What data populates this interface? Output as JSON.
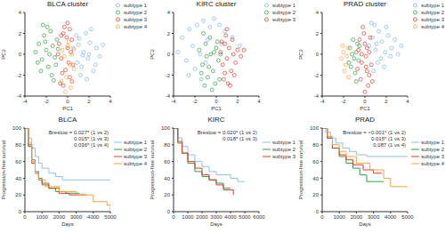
{
  "chart_data": [
    {
      "type": "scatter",
      "title": "BLCA cluster",
      "x_label": "PC1",
      "y_label": "PC2",
      "xlim": [
        -4,
        4
      ],
      "ylim": [
        -4,
        4
      ],
      "xticks": [
        -4,
        -2,
        0,
        2,
        4
      ],
      "yticks": [
        -4,
        -2,
        0,
        2,
        4
      ],
      "legend": "top-right",
      "series": [
        {
          "name": "subtype 1",
          "color": "#7fb2e5",
          "marker": "circle",
          "x": [
            0.6,
            0.9,
            1.1,
            1.3,
            1.5,
            1.7,
            1.9,
            2.1,
            2.4,
            2.7,
            3.0,
            3.3,
            1.2,
            1.8,
            2.2,
            0.8,
            1.4,
            2.6,
            1.0,
            2.0
          ],
          "values": [
            0.5,
            -0.8,
            1.5,
            -1.2,
            0.2,
            2.0,
            -0.4,
            1.1,
            -1.6,
            0.6,
            -0.2,
            0.9,
            -2.0,
            -2.4,
            2.4,
            1.8,
            -0.1,
            -1.0,
            0.9,
            0.0
          ]
        },
        {
          "name": "subtype 2",
          "color": "#2e9e44",
          "marker": "circle",
          "x": [
            -3.0,
            -2.7,
            -2.4,
            -2.2,
            -2.0,
            -1.8,
            -1.6,
            -1.4,
            -1.2,
            -1.0,
            -2.5,
            -1.9,
            -1.5,
            -1.1,
            -2.8,
            -1.7,
            -1.3,
            -2.1,
            -0.9,
            -2.3
          ],
          "values": [
            0.2,
            1.0,
            -0.5,
            1.8,
            0.4,
            -1.2,
            2.2,
            0.8,
            -0.3,
            1.4,
            -1.6,
            2.6,
            -2.0,
            -1.0,
            -0.8,
            0.0,
            -2.5,
            1.2,
            0.5,
            2.8
          ]
        },
        {
          "name": "subtype 3",
          "color": "#e03a2a",
          "marker": "circle",
          "x": [
            -0.8,
            -0.6,
            -0.4,
            -0.2,
            0.0,
            0.2,
            0.4,
            -0.7,
            -0.3,
            0.1,
            0.3,
            -0.5,
            -0.1,
            0.5,
            -0.9,
            0.0,
            -0.4,
            0.2,
            -0.6,
            0.4
          ],
          "values": [
            1.0,
            -0.4,
            2.0,
            -1.5,
            0.6,
            -2.2,
            1.4,
            -2.8,
            2.6,
            -0.8,
            0.2,
            -1.8,
            1.6,
            -1.0,
            0.0,
            3.0,
            -3.0,
            2.4,
            1.8,
            -2.6
          ]
        },
        {
          "name": "subtype 4",
          "color": "#f5a33a",
          "marker": "circle",
          "x": [
            -0.3,
            0.0,
            0.2,
            -0.5,
            0.4,
            -0.1,
            0.6,
            -0.6,
            0.1,
            0.3,
            -0.2,
            0.5
          ],
          "values": [
            -0.2,
            0.8,
            -1.0,
            0.4,
            0.0,
            -2.2,
            -1.4,
            -2.6,
            1.2,
            -3.2,
            -3.6,
            0.6
          ]
        }
      ]
    },
    {
      "type": "scatter",
      "title": "KIRC cluster",
      "x_label": "PC1",
      "y_label": "PC2",
      "xlim": [
        -4,
        4
      ],
      "ylim": [
        -4,
        4
      ],
      "xticks": [
        -4,
        -2,
        0,
        2,
        4
      ],
      "yticks": [
        -4,
        -2,
        0,
        2,
        4
      ],
      "legend": "top-right",
      "series": [
        {
          "name": "subtype 1",
          "color": "#7fb2e5",
          "marker": "circle",
          "x": [
            -3.6,
            -3.2,
            -2.8,
            -2.5,
            -2.2,
            -2.0,
            -1.8,
            -1.5,
            -1.2,
            -1.0,
            -0.6,
            -0.2,
            0.3,
            0.8,
            1.5,
            -2.6,
            -1.4,
            -0.8,
            0.5,
            2.2
          ],
          "values": [
            0.2,
            1.6,
            -0.6,
            2.4,
            0.8,
            -1.4,
            2.8,
            0.0,
            3.2,
            -0.8,
            2.6,
            3.4,
            2.8,
            2.2,
            1.6,
            -2.0,
            -2.4,
            1.4,
            1.0,
            0.8
          ]
        },
        {
          "name": "subtype 2",
          "color": "#2e9e44",
          "marker": "circle",
          "x": [
            -1.6,
            -1.3,
            -1.0,
            -0.8,
            -0.5,
            -0.3,
            0.0,
            0.2,
            -1.1,
            -0.6,
            -0.1,
            0.1,
            -0.9,
            -0.4,
            -1.4,
            -0.7,
            0.3,
            -0.2,
            -1.2,
            0.4
          ],
          "values": [
            0.4,
            -1.0,
            1.0,
            -2.2,
            0.0,
            -1.6,
            0.6,
            -0.6,
            -3.0,
            1.6,
            -2.8,
            1.2,
            -0.2,
            -3.4,
            -1.8,
            -1.2,
            -2.4,
            0.2,
            2.0,
            0.0
          ]
        },
        {
          "name": "subtype 3",
          "color": "#e03a2a",
          "marker": "circle",
          "x": [
            0.4,
            0.6,
            0.8,
            1.0,
            1.2,
            1.4,
            1.6,
            1.8,
            2.0,
            2.3,
            0.7,
            1.1,
            1.5,
            0.9,
            1.3,
            0.5,
            1.7,
            2.6,
            1.0,
            0.8
          ],
          "values": [
            0.2,
            -1.0,
            1.0,
            -0.4,
            0.6,
            -1.6,
            0.0,
            -0.8,
            0.4,
            -0.2,
            -2.4,
            -2.8,
            1.4,
            1.8,
            -3.0,
            1.2,
            -2.0,
            0.4,
            2.4,
            -1.8
          ]
        }
      ]
    },
    {
      "type": "scatter",
      "title": "PRAD cluster",
      "x_label": "PC1",
      "y_label": "PC2",
      "xlim": [
        -4,
        4
      ],
      "ylim": [
        -4,
        4
      ],
      "xticks": [
        -4,
        -2,
        0,
        2,
        4
      ],
      "yticks": [
        -4,
        -2,
        0,
        2,
        4
      ],
      "legend": "top-right",
      "series": [
        {
          "name": "subtype 1",
          "color": "#7fb2e5",
          "marker": "circle",
          "x": [
            0.4,
            0.7,
            1.0,
            1.3,
            1.6,
            1.9,
            2.2,
            2.5,
            2.8,
            3.1,
            0.9,
            1.5,
            2.0,
            1.2,
            0.6,
            1.8,
            2.4,
            1.1,
            3.4,
            0.8
          ],
          "values": [
            0.8,
            1.6,
            0.4,
            2.2,
            1.2,
            0.2,
            1.8,
            0.6,
            1.4,
            0.0,
            2.8,
            -0.4,
            2.6,
            -0.8,
            3.0,
            -1.2,
            -0.2,
            1.0,
            0.8,
            -1.6
          ]
        },
        {
          "name": "subtype 2",
          "color": "#2e9e44",
          "marker": "circle",
          "x": [
            -1.4,
            -1.1,
            -0.8,
            -0.6,
            -1.3,
            -1.0,
            -0.7,
            -0.9,
            -1.2,
            -0.5,
            -1.5,
            -0.8
          ],
          "values": [
            0.6,
            1.4,
            0.2,
            -0.6,
            -1.2,
            -0.4,
            1.0,
            -1.8,
            0.0,
            0.8,
            -0.8,
            -2.6
          ]
        },
        {
          "name": "subtype 3",
          "color": "#e03a2a",
          "marker": "circle",
          "x": [
            -0.6,
            -0.3,
            0.0,
            0.2,
            0.4,
            -0.4,
            -0.1,
            0.1,
            0.3,
            0.6,
            -0.5,
            -0.2,
            0.0,
            0.5,
            -0.7,
            0.2,
            0.4,
            -0.3,
            0.1,
            0.7
          ],
          "values": [
            0.4,
            -0.8,
            1.0,
            -1.6,
            0.2,
            -2.4,
            2.0,
            -0.2,
            -3.0,
            -1.0,
            1.4,
            2.6,
            -3.6,
            1.6,
            -1.4,
            0.6,
            -2.0,
            0.0,
            -1.2,
            -2.6
          ]
        },
        {
          "name": "subtype 4",
          "color": "#f5a33a",
          "marker": "circle",
          "x": [
            -2.2,
            -2.0,
            -1.8,
            -1.6,
            -1.9,
            -1.7,
            -2.1,
            -1.5
          ],
          "values": [
            -0.4,
            0.2,
            -1.0,
            0.6,
            -1.6,
            -0.2,
            0.8,
            -2.2
          ]
        }
      ]
    },
    {
      "type": "line",
      "title": "BLCA",
      "x_label": "Days",
      "y_label": "Progression-free survival",
      "xlim": [
        0,
        5000
      ],
      "ylim": [
        0,
        100
      ],
      "xticks": [
        0,
        1000,
        2000,
        3000,
        4000,
        5000
      ],
      "yticks": [
        0,
        20,
        40,
        60,
        80,
        100
      ],
      "legend": "right",
      "line_style": "step",
      "annotations": [
        "Breslow = 0.027* (1 vs 2)",
        "0.015* (1 vs 3)",
        "0.036* (1 vs 4)"
      ],
      "series": [
        {
          "name": "subtype 1",
          "color": "#8fbfe8",
          "x": [
            0,
            200,
            400,
            600,
            800,
            1000,
            1400,
            1800,
            2200,
            5000
          ],
          "values": [
            100,
            88,
            76,
            66,
            58,
            52,
            46,
            42,
            38,
            38
          ]
        },
        {
          "name": "subtype 2",
          "color": "#2e9e44",
          "x": [
            0,
            200,
            400,
            600,
            800,
            1000,
            1400,
            1800,
            2400,
            3200
          ],
          "values": [
            100,
            80,
            62,
            48,
            40,
            34,
            28,
            24,
            22,
            22
          ]
        },
        {
          "name": "subtype 3",
          "color": "#e03a2a",
          "x": [
            0,
            200,
            400,
            600,
            800,
            1000,
            1400,
            2000,
            2600,
            3600
          ],
          "values": [
            100,
            78,
            58,
            46,
            38,
            32,
            28,
            22,
            20,
            20
          ]
        },
        {
          "name": "subtype 4",
          "color": "#f5a33a",
          "x": [
            0,
            200,
            400,
            600,
            800,
            1200,
            2000,
            3000,
            4000,
            4800,
            5000
          ],
          "values": [
            100,
            82,
            60,
            46,
            38,
            30,
            24,
            20,
            12,
            8,
            0
          ]
        }
      ]
    },
    {
      "type": "line",
      "title": "KIRC",
      "x_label": "Days",
      "y_label": "Progression-free survival",
      "xlim": [
        0,
        6000
      ],
      "ylim": [
        0,
        100
      ],
      "xticks": [
        0,
        1000,
        2000,
        3000,
        4000,
        5000,
        6000
      ],
      "yticks": [
        0,
        20,
        40,
        60,
        80,
        100
      ],
      "legend": "right",
      "line_style": "step",
      "annotations": [
        "Breslow = 0.020* (1 vs 2)",
        "0.018* (1 vs 3)"
      ],
      "series": [
        {
          "name": "subtype 1",
          "color": "#8fbfe8",
          "x": [
            0,
            300,
            600,
            1000,
            1500,
            2000,
            2500,
            3000,
            4000,
            4500,
            5000
          ],
          "values": [
            100,
            88,
            78,
            68,
            60,
            54,
            48,
            44,
            40,
            36,
            36
          ]
        },
        {
          "name": "subtype 2",
          "color": "#2e9e44",
          "x": [
            0,
            300,
            600,
            1000,
            1500,
            2000,
            2500,
            3000,
            3500,
            4000
          ],
          "values": [
            100,
            82,
            70,
            58,
            48,
            42,
            38,
            34,
            28,
            28
          ]
        },
        {
          "name": "subtype 3",
          "color": "#e03a2a",
          "x": [
            0,
            300,
            600,
            1000,
            1500,
            2000,
            2500,
            3000,
            3500,
            4200
          ],
          "values": [
            100,
            84,
            70,
            60,
            52,
            44,
            38,
            32,
            26,
            20
          ]
        }
      ]
    },
    {
      "type": "line",
      "title": "PRAD",
      "x_label": "Days",
      "y_label": "Progression-free survival",
      "xlim": [
        0,
        5000
      ],
      "ylim": [
        0,
        100
      ],
      "xticks": [
        0,
        1000,
        2000,
        3000,
        4000,
        5000
      ],
      "yticks": [
        0,
        20,
        40,
        60,
        80,
        100
      ],
      "legend": "right",
      "line_style": "step",
      "annotations": [
        "Breslow = <0.001* (1 vs 2)",
        "0.015* (1 vs 3)",
        "0.087 (1 vs 4)"
      ],
      "series": [
        {
          "name": "subtype 1",
          "color": "#8fbfe8",
          "x": [
            0,
            200,
            500,
            800,
            1200,
            1600,
            2000,
            2600,
            5000
          ],
          "values": [
            100,
            95,
            88,
            82,
            76,
            72,
            68,
            66,
            66
          ]
        },
        {
          "name": "subtype 2",
          "color": "#2e9e44",
          "x": [
            0,
            300,
            600,
            1000,
            1400,
            1800,
            2200,
            2600,
            3600
          ],
          "values": [
            100,
            88,
            76,
            66,
            58,
            52,
            44,
            36,
            36
          ]
        },
        {
          "name": "subtype 3",
          "color": "#e03a2a",
          "x": [
            0,
            300,
            600,
            1000,
            1400,
            1800,
            2400,
            3000,
            3500
          ],
          "values": [
            100,
            88,
            76,
            68,
            62,
            56,
            50,
            46,
            46
          ]
        },
        {
          "name": "subtype 4",
          "color": "#f5a33a",
          "x": [
            0,
            300,
            600,
            1000,
            1400,
            2000,
            2800,
            3600,
            4000,
            5000
          ],
          "values": [
            100,
            90,
            80,
            72,
            66,
            58,
            50,
            40,
            30,
            30
          ]
        }
      ]
    }
  ]
}
